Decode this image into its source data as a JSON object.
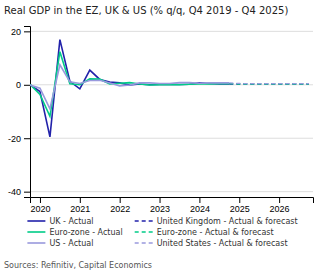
{
  "chart_data": {
    "type": "line",
    "title": "Real GDP in the EZ, UK & US (% q/q, Q4 2019 - Q4 2025)",
    "annotations": [
      "Sources: Refinitiv, Capital Economics"
    ],
    "xlim": [
      2019.75,
      2026.85
    ],
    "xticks": [
      2020,
      2021,
      2022,
      2023,
      2024,
      2025,
      2026
    ],
    "ylim": [
      -42,
      22
    ],
    "yticks": [
      -40,
      -20,
      0,
      20
    ],
    "grid": true,
    "series": [
      {
        "name": "UK - Actual",
        "color": "#2222aa",
        "line_style": "solid",
        "x": [
          2019.75,
          2020.0,
          2020.25,
          2020.5,
          2020.75,
          2021.0,
          2021.25,
          2021.5,
          2021.75,
          2022.0,
          2022.25,
          2022.5,
          2022.75,
          2023.0,
          2023.25,
          2023.5,
          2023.75,
          2024.0,
          2024.25,
          2024.5,
          2024.75
        ],
        "values": [
          0.0,
          -2.5,
          -19.5,
          16.9,
          1.3,
          -1.5,
          5.5,
          2.0,
          1.0,
          0.7,
          -0.1,
          0.3,
          0.0,
          0.1,
          0.2,
          0.1,
          0.2,
          0.7,
          0.5,
          0.3,
          0.3
        ]
      },
      {
        "name": "Euro-zone - Actual",
        "color": "#00cc88",
        "line_style": "solid",
        "x": [
          2019.75,
          2020.0,
          2020.25,
          2020.5,
          2020.75,
          2021.0,
          2021.25,
          2021.5,
          2021.75,
          2022.0,
          2022.25,
          2022.5,
          2022.75,
          2023.0,
          2023.25,
          2023.5,
          2023.75,
          2024.0,
          2024.25,
          2024.5,
          2024.75
        ],
        "values": [
          0.2,
          -3.6,
          -11.8,
          12.4,
          0.4,
          0.0,
          2.2,
          2.1,
          0.3,
          0.6,
          0.8,
          0.3,
          -0.1,
          0.0,
          0.1,
          0.0,
          0.2,
          0.3,
          0.3,
          0.4,
          0.4
        ]
      },
      {
        "name": "US - Actual",
        "color": "#9999dd",
        "line_style": "solid",
        "x": [
          2019.75,
          2020.0,
          2020.25,
          2020.5,
          2020.75,
          2021.0,
          2021.25,
          2021.5,
          2021.75,
          2022.0,
          2022.25,
          2022.5,
          2022.75,
          2023.0,
          2023.25,
          2023.5,
          2023.75,
          2024.0,
          2024.25,
          2024.5,
          2024.75
        ],
        "values": [
          -0.1,
          -1.3,
          -9.0,
          7.5,
          1.1,
          0.5,
          1.6,
          1.7,
          0.7,
          -0.4,
          -0.1,
          0.7,
          0.7,
          0.5,
          0.5,
          0.8,
          0.8,
          0.6,
          0.7,
          0.7,
          0.7
        ]
      },
      {
        "name": "United Kingdom - Actual & forecast",
        "color": "#2222aa",
        "line_style": "dashed",
        "x": [
          2024.75,
          2025.0,
          2025.25,
          2025.5,
          2025.75,
          2026.0,
          2026.25,
          2026.5,
          2026.75
        ],
        "values": [
          0.3,
          0.3,
          0.3,
          0.3,
          0.3,
          0.3,
          0.3,
          0.3,
          0.3
        ]
      },
      {
        "name": "Euro-zone - Actual & forecast",
        "color": "#00cc88",
        "line_style": "dashed",
        "x": [
          2024.75,
          2025.0,
          2025.25,
          2025.5,
          2025.75,
          2026.0,
          2026.25,
          2026.5,
          2026.75
        ],
        "values": [
          0.4,
          0.3,
          0.3,
          0.3,
          0.3,
          0.3,
          0.3,
          0.3,
          0.3
        ]
      },
      {
        "name": "United States - Actual & forecast",
        "color": "#9999dd",
        "line_style": "dashed",
        "x": [
          2024.75,
          2025.0,
          2025.25,
          2025.5,
          2025.75,
          2026.0,
          2026.25,
          2026.5,
          2026.75
        ],
        "values": [
          0.7,
          0.5,
          0.4,
          0.4,
          0.4,
          0.4,
          0.4,
          0.4,
          0.4
        ]
      }
    ]
  }
}
